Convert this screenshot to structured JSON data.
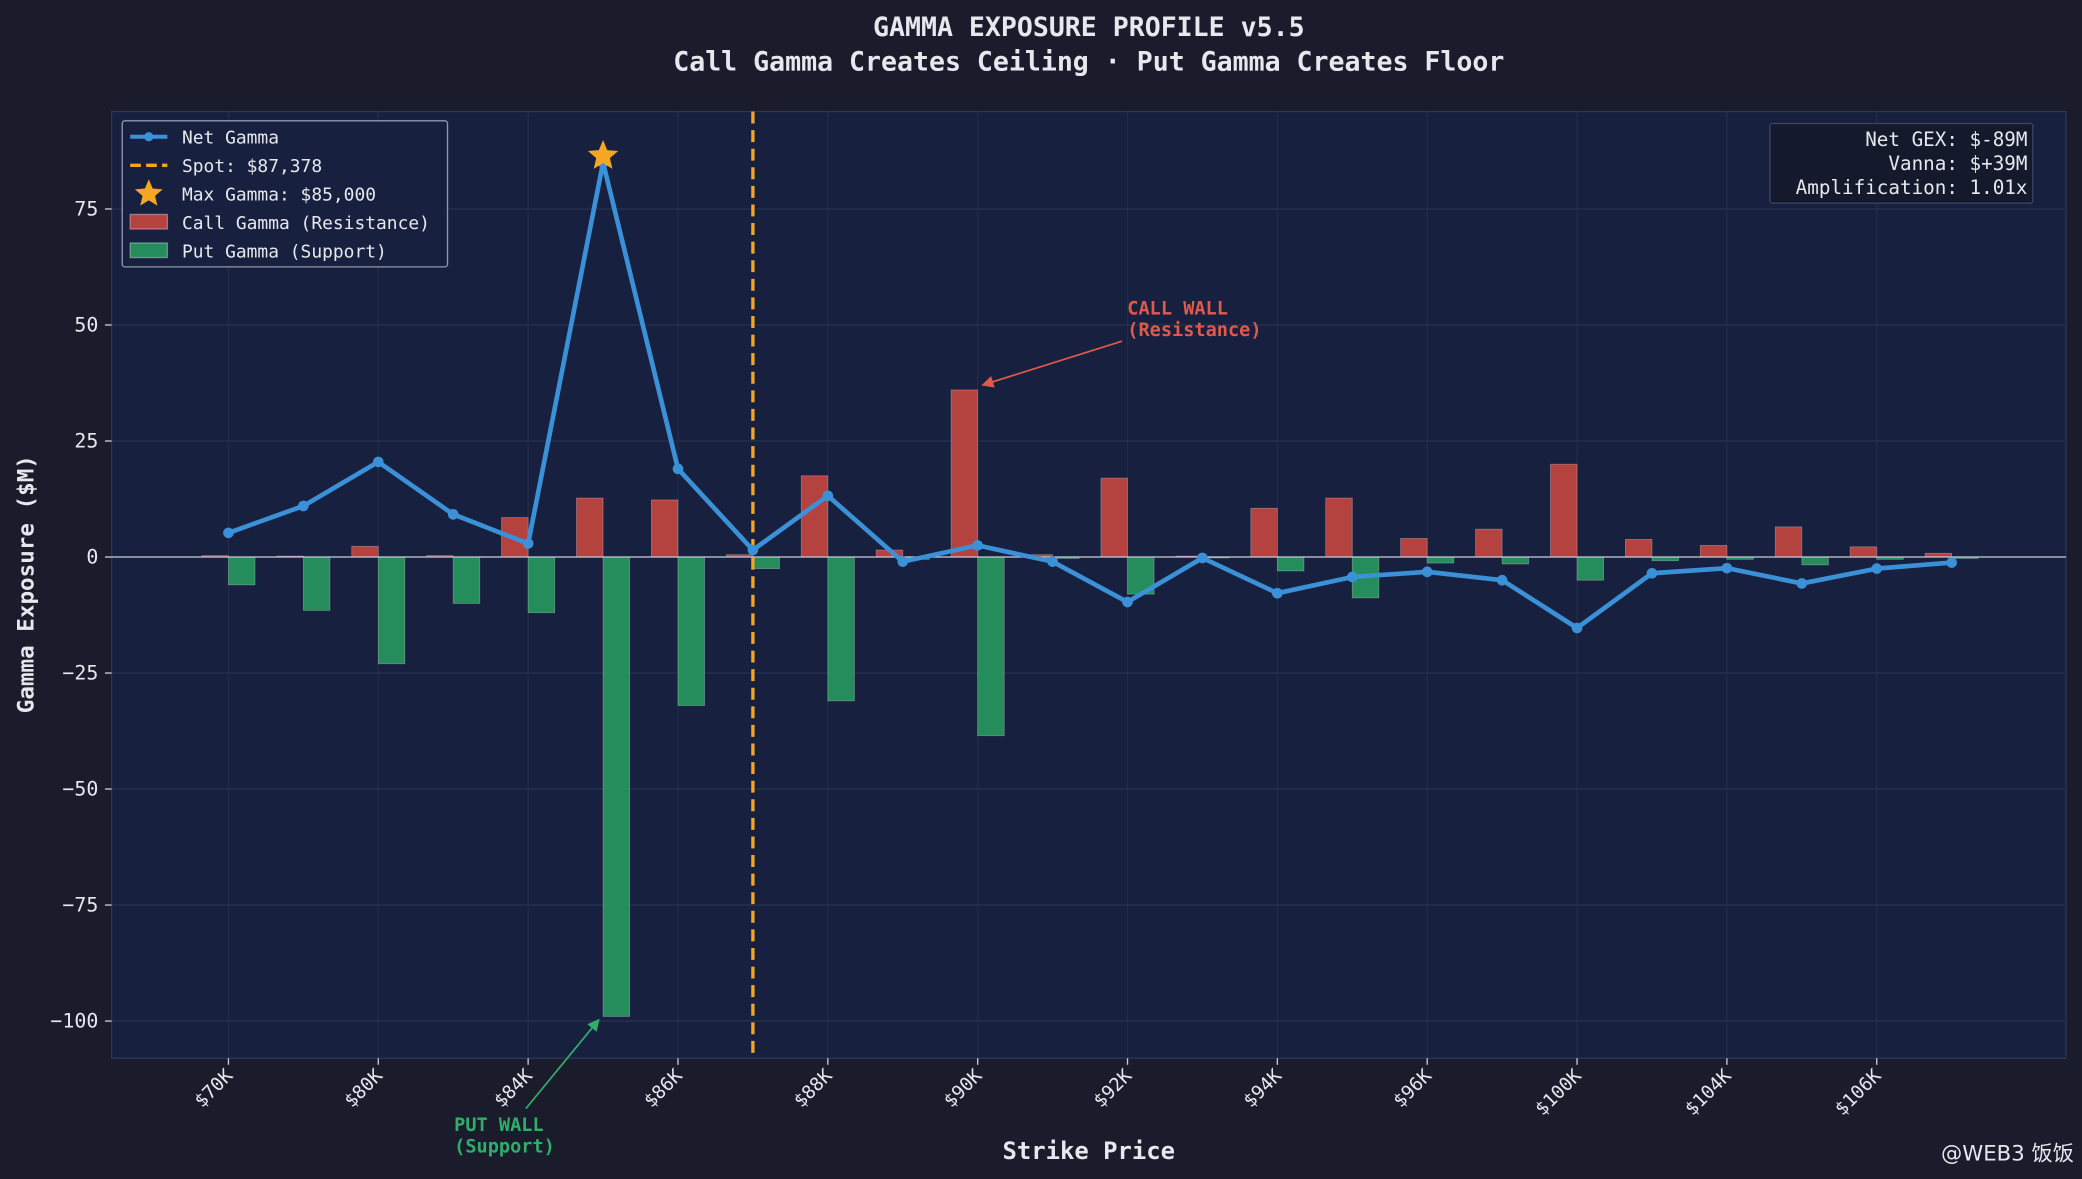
{
  "chart_data": {
    "type": "bar",
    "title": "GAMMA EXPOSURE PROFILE v5.5",
    "subtitle": "Call Gamma Creates Ceiling · Put Gamma Creates Floor",
    "x_label": "Strike Price",
    "y_label": "Gamma Exposure ($M)",
    "categories": [
      "$70K",
      null,
      "$80K",
      null,
      "$84K",
      null,
      "$86K",
      null,
      "$88K",
      null,
      "$90K",
      null,
      "$92K",
      null,
      "$94K",
      null,
      "$96K",
      null,
      "$100K",
      null,
      "$104K",
      null,
      "$106K",
      null
    ],
    "series": [
      {
        "name": "Call Gamma (Resistance)",
        "color": "#d0483f",
        "values": [
          0.3,
          0.2,
          2.3,
          0.3,
          8.5,
          12.7,
          12.3,
          0.5,
          17.5,
          1.5,
          36,
          0.5,
          17,
          0.2,
          10.5,
          12.7,
          4,
          6,
          20,
          3.8,
          2.5,
          6.5,
          2.2,
          0.8
        ]
      },
      {
        "name": "Put Gamma (Support)",
        "color": "#27a060",
        "values": [
          -6,
          -11.5,
          -23,
          -10,
          -12,
          -99,
          -32,
          -2.5,
          -31,
          -0.5,
          -38.5,
          -0.3,
          -8,
          -0.2,
          -3,
          -8.8,
          -1.3,
          -1.5,
          -5,
          -0.8,
          -0.5,
          -1.7,
          -0.5,
          -0.3
        ]
      },
      {
        "name": "Net Gamma",
        "type": "line",
        "color": "#3b91d8",
        "values": [
          5.2,
          11,
          20.5,
          9.2,
          2.9,
          85,
          19,
          1.5,
          13.2,
          -1,
          2.5,
          -1,
          -9.7,
          -0.2,
          -7.8,
          -4.3,
          -3.2,
          -5,
          -15.3,
          -3.5,
          -2.4,
          -5.7,
          -2.5,
          -1.2
        ]
      }
    ],
    "spot": {
      "label": "Spot: $87,378",
      "category_index": 7,
      "color": "#f5a623"
    },
    "max_marker": {
      "label": "Max Gamma: $85,000",
      "color": "#f5a623"
    },
    "ylim": [
      -108,
      96
    ],
    "yticks": [
      {
        "value": -100,
        "label": "−100"
      },
      {
        "value": -75,
        "label": "−75"
      },
      {
        "value": -50,
        "label": "−50"
      },
      {
        "value": -25,
        "label": "−25"
      },
      0,
      25,
      50,
      75
    ],
    "grid": true,
    "legend": "upper left",
    "annotations": [
      {
        "lines": [
          "CALL WALL",
          "(Resistance)"
        ],
        "color": "#e05a4a"
      },
      {
        "lines": [
          "PUT WALL",
          "(Support)"
        ],
        "color": "#2fae6a"
      }
    ],
    "stats": [
      "Net GEX: $-89M",
      "Vanna: $+39M",
      "Amplification: 1.01x"
    ],
    "watermark": "@WEB3 饭饭"
  }
}
